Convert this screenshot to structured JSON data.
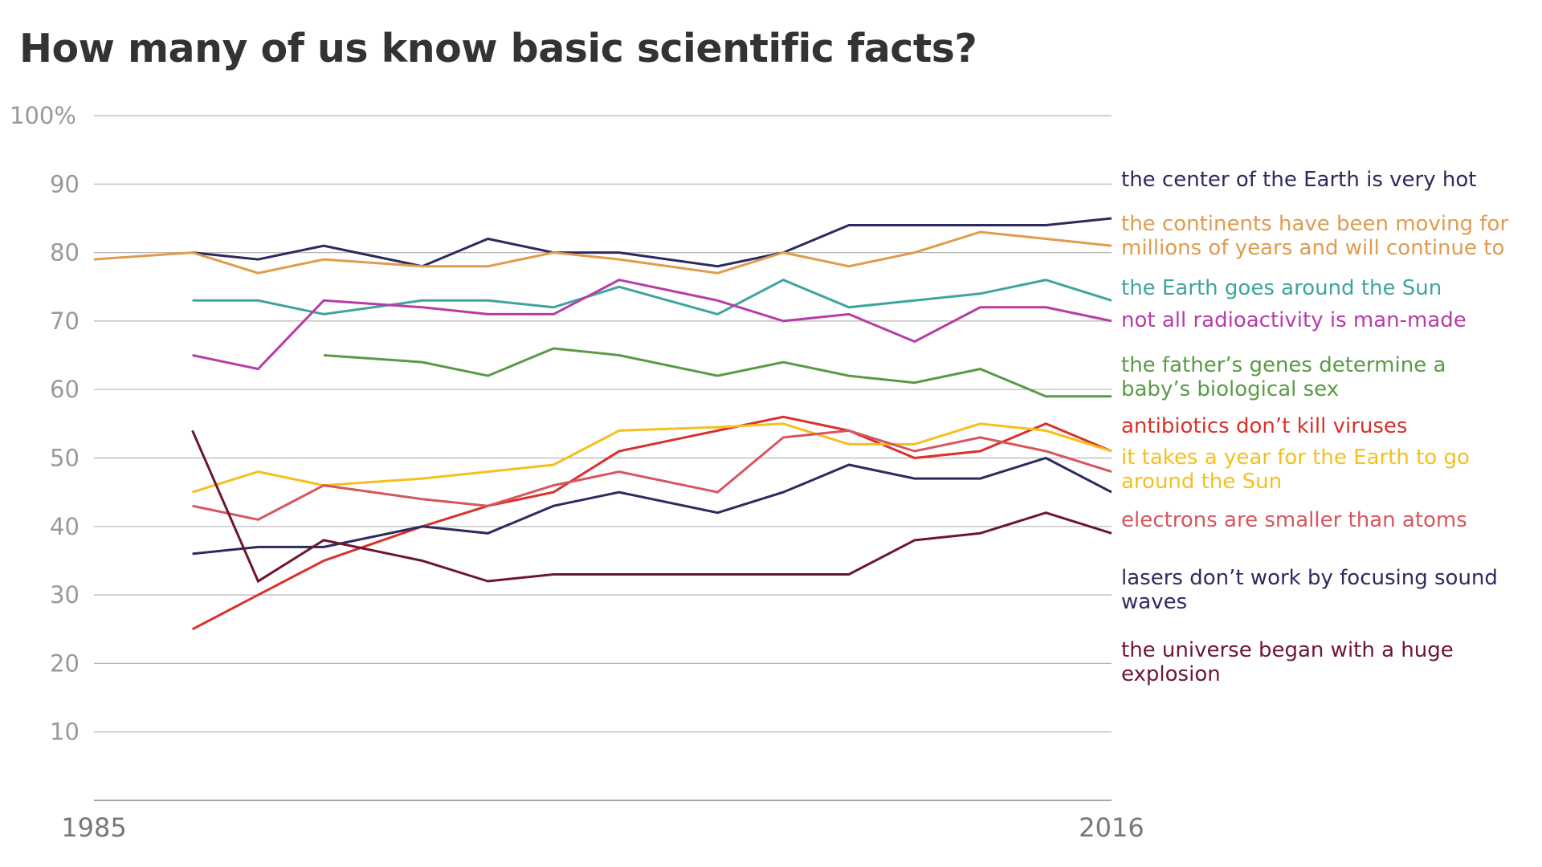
{
  "chart_data": {
    "type": "line",
    "title": "How many of us know basic scientific facts?",
    "xlim": [
      1985,
      2016
    ],
    "ylim": [
      0,
      100
    ],
    "x_tick_labels": [
      {
        "value": 1985,
        "label": "1985"
      },
      {
        "value": 2016,
        "label": "2016"
      }
    ],
    "y_tick_labels": [
      {
        "value": 100,
        "label": "100%"
      },
      {
        "value": 90,
        "label": "90"
      },
      {
        "value": 80,
        "label": "80"
      },
      {
        "value": 70,
        "label": "70"
      },
      {
        "value": 60,
        "label": "60"
      },
      {
        "value": 50,
        "label": "50"
      },
      {
        "value": 40,
        "label": "40"
      },
      {
        "value": 30,
        "label": "30"
      },
      {
        "value": 20,
        "label": "20"
      },
      {
        "value": 10,
        "label": "10"
      }
    ],
    "x": [
      1985,
      1988,
      1990,
      1992,
      1995,
      1997,
      1999,
      2001,
      2004,
      2006,
      2008,
      2010,
      2012,
      2014,
      2016
    ],
    "series": [
      {
        "name": "the center of the Earth is very hot",
        "color": "#2b2a5c",
        "label_lines": [
          "the center of the Earth is very hot"
        ],
        "values": [
          null,
          80,
          79,
          81,
          78,
          82,
          80,
          80,
          78,
          80,
          84,
          84,
          84,
          84,
          85
        ]
      },
      {
        "name": "the continents have been moving for millions of years and will continue to",
        "color": "#e09b4d",
        "label_lines": [
          "the continents have been moving for",
          "millions of years and will continue to"
        ],
        "values": [
          79,
          80,
          77,
          79,
          78,
          78,
          80,
          79,
          77,
          80,
          78,
          80,
          83,
          82,
          81
        ]
      },
      {
        "name": "the Earth goes around the Sun",
        "color": "#3ea49e",
        "label_lines": [
          "the Earth goes around the Sun"
        ],
        "values": [
          null,
          73,
          73,
          71,
          73,
          73,
          72,
          75,
          71,
          76,
          72,
          73,
          74,
          76,
          73
        ]
      },
      {
        "name": "not all radioactivity is man-made",
        "color": "#b83ba6",
        "label_lines": [
          "not all radioactivity is man-made"
        ],
        "values": [
          null,
          65,
          63,
          73,
          72,
          71,
          71,
          76,
          73,
          70,
          71,
          67,
          72,
          72,
          70
        ]
      },
      {
        "name": "the father's genes determine a baby's biological sex",
        "color": "#5a9a45",
        "label_lines": [
          "the father’s genes determine a",
          "baby’s biological sex"
        ],
        "values": [
          null,
          null,
          null,
          65,
          64,
          62,
          66,
          65,
          62,
          64,
          62,
          61,
          63,
          59,
          59
        ]
      },
      {
        "name": "antibiotics don't kill viruses",
        "color": "#d9312b",
        "label_lines": [
          "antibiotics don’t kill viruses"
        ],
        "values": [
          null,
          25,
          30,
          35,
          40,
          43,
          45,
          51,
          54,
          56,
          54,
          50,
          51,
          55,
          51
        ]
      },
      {
        "name": "it takes a year for the Earth to go around the Sun",
        "color": "#f5bf1c",
        "label_lines": [
          "it takes a year for the Earth to go",
          "around the Sun"
        ],
        "values": [
          null,
          45,
          48,
          46,
          47,
          48,
          49,
          54,
          54.5,
          55,
          52,
          52,
          55,
          54,
          51
        ]
      },
      {
        "name": "electrons are smaller than atoms",
        "color": "#d6565e",
        "label_lines": [
          "electrons are smaller than atoms"
        ],
        "values": [
          null,
          43,
          41,
          46,
          44,
          43,
          46,
          48,
          45,
          53,
          54,
          51,
          53,
          51,
          48
        ]
      },
      {
        "name": "lasers don't work by focusing sound waves",
        "color": "#2d2b5e",
        "label_lines": [
          "lasers don’t work by focusing sound",
          "waves"
        ],
        "values": [
          null,
          36,
          37,
          37,
          40,
          39,
          43,
          45,
          42,
          45,
          49,
          47,
          47,
          50,
          45
        ]
      },
      {
        "name": "the universe began with a huge explosion",
        "color": "#6e1530",
        "label_lines": [
          "the universe began with a huge",
          "explosion"
        ],
        "values": [
          null,
          54,
          32,
          38,
          35,
          32,
          33,
          33,
          33,
          33,
          33,
          38,
          39,
          42,
          39
        ]
      }
    ]
  }
}
